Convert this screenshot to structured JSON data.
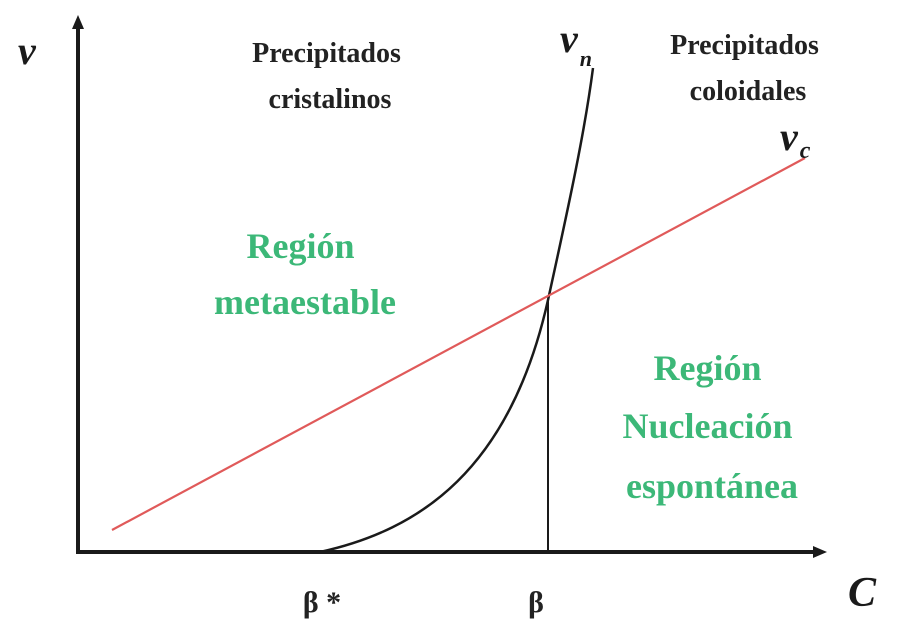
{
  "axes": {
    "y_label": "v",
    "x_label": "C"
  },
  "curves": {
    "vn_label": "v",
    "vn_subscript": "n",
    "vc_label": "v",
    "vc_subscript": "c"
  },
  "ticks": {
    "beta_star": "β *",
    "beta": "β"
  },
  "regions": {
    "top_left": [
      "Precipitados",
      "cristalinos"
    ],
    "top_right": [
      "Precipitados",
      "coloidales"
    ],
    "metastable": [
      "Región",
      "metaestable"
    ],
    "nucleation": [
      "Región",
      "Nucleación",
      "espontánea"
    ]
  },
  "colors": {
    "axis": "#1a1a1a",
    "vc_line": "#e05a5a",
    "region_text": "#3cb878",
    "label_text": "#222222"
  }
}
